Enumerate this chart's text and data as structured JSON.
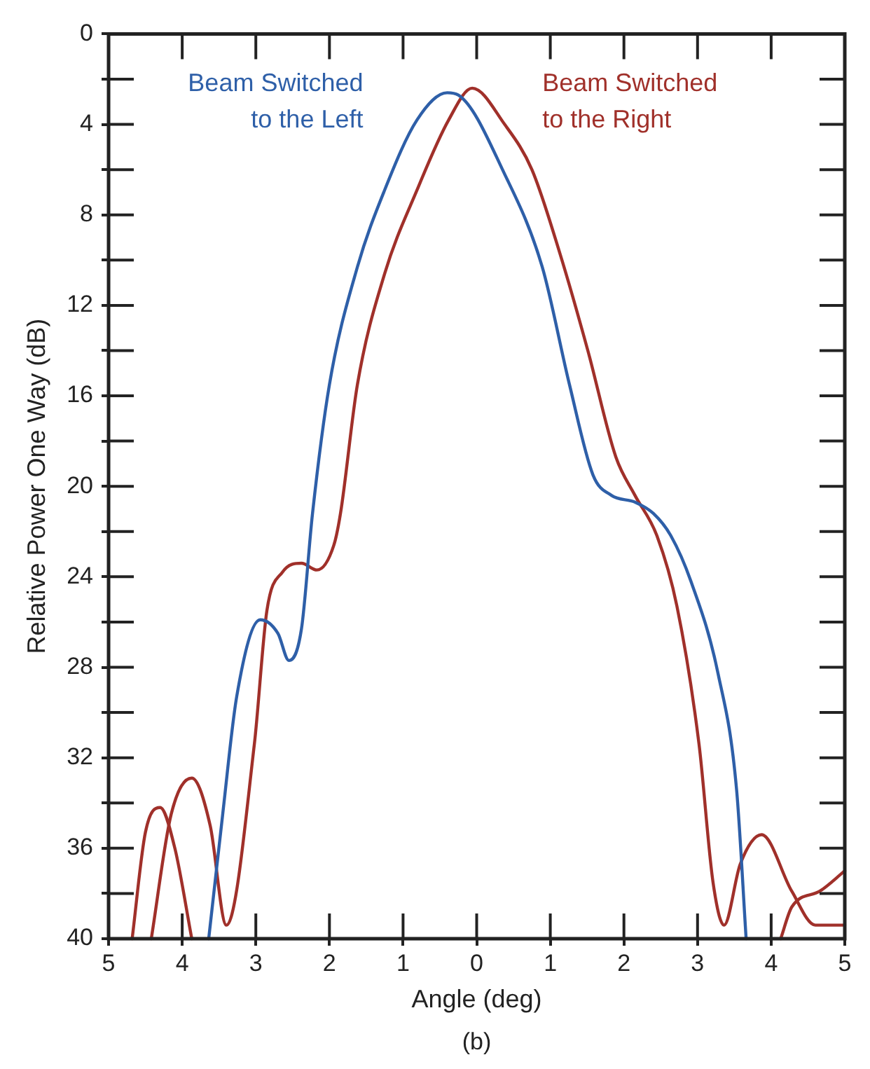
{
  "chart_data": {
    "type": "line",
    "xlabel": "Angle (deg)",
    "ylabel": "Relative Power One Way (dB)",
    "xlim": [
      -5,
      5
    ],
    "xticks": [
      {
        "value": -5,
        "label": "5"
      },
      {
        "value": -4,
        "label": "4"
      },
      {
        "value": -3,
        "label": "3"
      },
      {
        "value": -2,
        "label": "2"
      },
      {
        "value": -1,
        "label": "1"
      },
      0,
      1,
      2,
      3,
      4,
      5
    ],
    "ylim": [
      40,
      0
    ],
    "yticks": [
      0,
      {
        "value": 2,
        "label": null
      },
      4,
      {
        "value": 6,
        "label": null
      },
      8,
      {
        "value": 10,
        "label": null
      },
      12,
      {
        "value": 14,
        "label": null
      },
      16,
      {
        "value": 18,
        "label": null
      },
      20,
      {
        "value": 22,
        "label": null
      },
      24,
      {
        "value": 26,
        "label": null
      },
      28,
      {
        "value": 30,
        "label": null
      },
      32,
      {
        "value": 34,
        "label": null
      },
      36,
      {
        "value": 38,
        "label": null
      },
      40
    ],
    "legend": false,
    "marker": "none",
    "line_style": "solid",
    "annotations": [
      "(b)"
    ],
    "series": [
      {
        "name": "Beam Switched to the Left",
        "color": "#2e5fa8",
        "x": [
          -3.64,
          -3.45,
          -3.26,
          -2.94,
          -2.7,
          -2.55,
          -2.38,
          -2.23,
          -2.0,
          -1.62,
          -1.25,
          -0.81,
          -0.4,
          -0.25,
          0.38,
          0.89,
          1.26,
          1.58,
          1.83,
          2.15,
          2.4,
          2.64,
          2.91,
          3.28,
          3.53,
          3.66
        ],
        "values": [
          40,
          34.5,
          29.3,
          25.9,
          26.5,
          27.7,
          26.3,
          21.2,
          15.5,
          10.3,
          6.9,
          3.8,
          2.6,
          2.7,
          6.2,
          10.3,
          15.5,
          19.5,
          20.4,
          20.7,
          21.2,
          22.2,
          24.2,
          28.3,
          33.4,
          40
        ]
      },
      {
        "name": "Beam Switched to the Right",
        "color": "#a0302a",
        "x": [
          -4.42,
          -4.15,
          -3.87,
          -3.62,
          -3.4,
          -3.02,
          -2.85,
          -2.64,
          -2.38,
          -2.17,
          -1.94,
          -1.85,
          -1.62,
          -1.25,
          -0.81,
          -0.38,
          -0.06,
          0.38,
          0.75,
          1.13,
          1.51,
          1.89,
          2.15,
          2.45,
          2.72,
          3.02,
          3.21,
          3.36,
          3.58,
          3.87,
          4.28,
          4.6,
          5.0
        ],
        "values": [
          40,
          34.5,
          32.9,
          35.0,
          39.4,
          31.4,
          25.5,
          23.8,
          23.4,
          23.7,
          22.6,
          21.2,
          15.5,
          10.6,
          6.9,
          3.8,
          2.4,
          4.0,
          6.0,
          9.7,
          14.0,
          18.7,
          20.4,
          22.2,
          25.3,
          31.4,
          37.5,
          39.4,
          36.7,
          35.4,
          37.9,
          39.4,
          39.4
        ]
      },
      {
        "color": "#a0302a",
        "x": [
          -4.68,
          -4.5,
          -4.3,
          -4.1,
          -3.87
        ],
        "values": [
          40,
          35.3,
          34.2,
          36.0,
          40
        ]
      },
      {
        "color": "#a0302a",
        "x": [
          4.13,
          4.28,
          4.66,
          5.0
        ],
        "values": [
          40,
          38.6,
          37.9,
          37.0
        ]
      }
    ]
  }
}
